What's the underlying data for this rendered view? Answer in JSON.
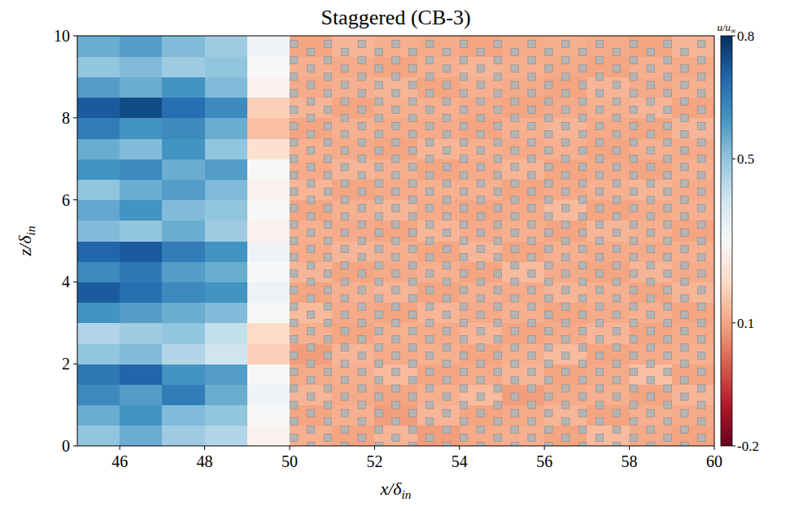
{
  "chart_data": {
    "type": "heatmap",
    "title": "Staggered (CB-3)",
    "xlabel": "x/δin",
    "ylabel": "z/δin",
    "xlim": [
      45,
      60
    ],
    "ylim": [
      0,
      10
    ],
    "xticks": [
      46,
      48,
      50,
      52,
      54,
      56,
      58,
      60
    ],
    "yticks": [
      0,
      2,
      4,
      6,
      8,
      10
    ],
    "grid": false,
    "x_edges": [
      45,
      46,
      47,
      48,
      49,
      50,
      51,
      52,
      53,
      54,
      55,
      56,
      57,
      58,
      59,
      60
    ],
    "z_edges": [
      0,
      0.5,
      1,
      1.5,
      2,
      2.5,
      3,
      3.5,
      4,
      4.5,
      5,
      5.5,
      6,
      6.5,
      7,
      7.5,
      8,
      8.5,
      9,
      9.5,
      10
    ],
    "cells": [
      [
        0.5,
        0.55,
        0.48,
        0.45,
        0.28,
        0.12,
        0.1,
        0.13,
        0.09,
        0.11,
        0.12,
        0.1,
        0.14,
        0.11,
        0.1
      ],
      [
        0.55,
        0.6,
        0.52,
        0.5,
        0.3,
        0.1,
        0.12,
        0.09,
        0.13,
        0.1,
        0.11,
        0.13,
        0.1,
        0.12,
        0.11
      ],
      [
        0.62,
        0.58,
        0.65,
        0.55,
        0.32,
        0.13,
        0.11,
        0.1,
        0.12,
        0.14,
        0.09,
        0.11,
        0.12,
        0.1,
        0.13
      ],
      [
        0.66,
        0.7,
        0.6,
        0.58,
        0.3,
        0.11,
        0.12,
        0.14,
        0.1,
        0.11,
        0.13,
        0.1,
        0.11,
        0.15,
        0.1
      ],
      [
        0.5,
        0.52,
        0.45,
        0.4,
        0.18,
        0.09,
        0.13,
        0.11,
        0.12,
        0.1,
        0.12,
        0.14,
        0.1,
        0.11,
        0.12
      ],
      [
        0.45,
        0.48,
        0.5,
        0.42,
        0.2,
        0.12,
        0.1,
        0.12,
        0.11,
        0.13,
        0.1,
        0.11,
        0.13,
        0.1,
        0.11
      ],
      [
        0.6,
        0.58,
        0.55,
        0.52,
        0.3,
        0.14,
        0.11,
        0.1,
        0.13,
        0.11,
        0.12,
        0.1,
        0.11,
        0.12,
        0.1
      ],
      [
        0.72,
        0.68,
        0.62,
        0.6,
        0.33,
        0.1,
        0.12,
        0.13,
        0.1,
        0.12,
        0.11,
        0.13,
        0.12,
        0.1,
        0.13
      ],
      [
        0.62,
        0.66,
        0.58,
        0.55,
        0.3,
        0.13,
        0.1,
        0.11,
        0.12,
        0.1,
        0.14,
        0.11,
        0.1,
        0.13,
        0.11
      ],
      [
        0.7,
        0.72,
        0.65,
        0.6,
        0.32,
        0.11,
        0.13,
        0.12,
        0.1,
        0.13,
        0.1,
        0.12,
        0.11,
        0.11,
        0.12
      ],
      [
        0.52,
        0.5,
        0.55,
        0.48,
        0.28,
        0.12,
        0.11,
        0.1,
        0.13,
        0.11,
        0.12,
        0.1,
        0.13,
        0.12,
        0.1
      ],
      [
        0.56,
        0.6,
        0.52,
        0.5,
        0.3,
        0.1,
        0.12,
        0.13,
        0.11,
        0.1,
        0.11,
        0.14,
        0.1,
        0.11,
        0.12
      ],
      [
        0.5,
        0.55,
        0.58,
        0.52,
        0.28,
        0.13,
        0.1,
        0.11,
        0.12,
        0.12,
        0.1,
        0.11,
        0.12,
        0.13,
        0.11
      ],
      [
        0.6,
        0.62,
        0.55,
        0.58,
        0.3,
        0.11,
        0.13,
        0.12,
        0.1,
        0.11,
        0.13,
        0.1,
        0.11,
        0.1,
        0.12
      ],
      [
        0.55,
        0.52,
        0.6,
        0.5,
        0.22,
        0.12,
        0.11,
        0.1,
        0.13,
        0.12,
        0.11,
        0.12,
        0.1,
        0.12,
        0.11
      ],
      [
        0.65,
        0.6,
        0.62,
        0.55,
        0.15,
        0.1,
        0.12,
        0.11,
        0.11,
        0.1,
        0.12,
        0.13,
        0.11,
        0.1,
        0.13
      ],
      [
        0.72,
        0.75,
        0.68,
        0.62,
        0.18,
        0.13,
        0.1,
        0.12,
        0.12,
        0.11,
        0.1,
        0.11,
        0.12,
        0.13,
        0.1
      ],
      [
        0.58,
        0.55,
        0.6,
        0.52,
        0.28,
        0.11,
        0.12,
        0.13,
        0.1,
        0.12,
        0.11,
        0.1,
        0.13,
        0.11,
        0.12
      ],
      [
        0.5,
        0.52,
        0.48,
        0.5,
        0.3,
        0.12,
        0.11,
        0.1,
        0.12,
        0.13,
        0.12,
        0.11,
        0.1,
        0.12,
        0.11
      ],
      [
        0.55,
        0.58,
        0.52,
        0.48,
        0.32,
        0.1,
        0.13,
        0.12,
        0.11,
        0.1,
        0.11,
        0.12,
        0.11,
        0.1,
        0.13
      ]
    ],
    "colorbar": {
      "label": "u/u∞",
      "range": [
        -0.2,
        0.8
      ],
      "ticks": [
        -0.2,
        0.1,
        0.5,
        0.8
      ]
    },
    "obstacles": {
      "size": 0.18,
      "x": [
        50.1,
        50.5,
        50.9,
        51.3,
        51.7,
        52.1,
        52.5,
        52.9,
        53.3,
        53.7,
        54.1,
        54.5,
        54.9,
        55.3,
        55.7,
        56.1,
        56.5,
        56.9,
        57.3,
        57.7,
        58.1,
        58.5,
        58.9,
        59.3,
        59.7
      ],
      "z_even": [
        0.2,
        0.6,
        1,
        1.4,
        1.8,
        2.2,
        2.6,
        3,
        3.4,
        3.8,
        4.2,
        4.6,
        5,
        5.4,
        5.8,
        6.2,
        6.6,
        7,
        7.4,
        7.8,
        8.2,
        8.6,
        9,
        9.4,
        9.8
      ],
      "z_odd": [
        0,
        0.4,
        0.8,
        1.2,
        1.6,
        2,
        2.4,
        2.8,
        3.2,
        3.6,
        4,
        4.4,
        4.8,
        5.2,
        5.6,
        6,
        6.4,
        6.8,
        7.2,
        7.6,
        8,
        8.4,
        8.8,
        9.2,
        9.6
      ]
    }
  }
}
